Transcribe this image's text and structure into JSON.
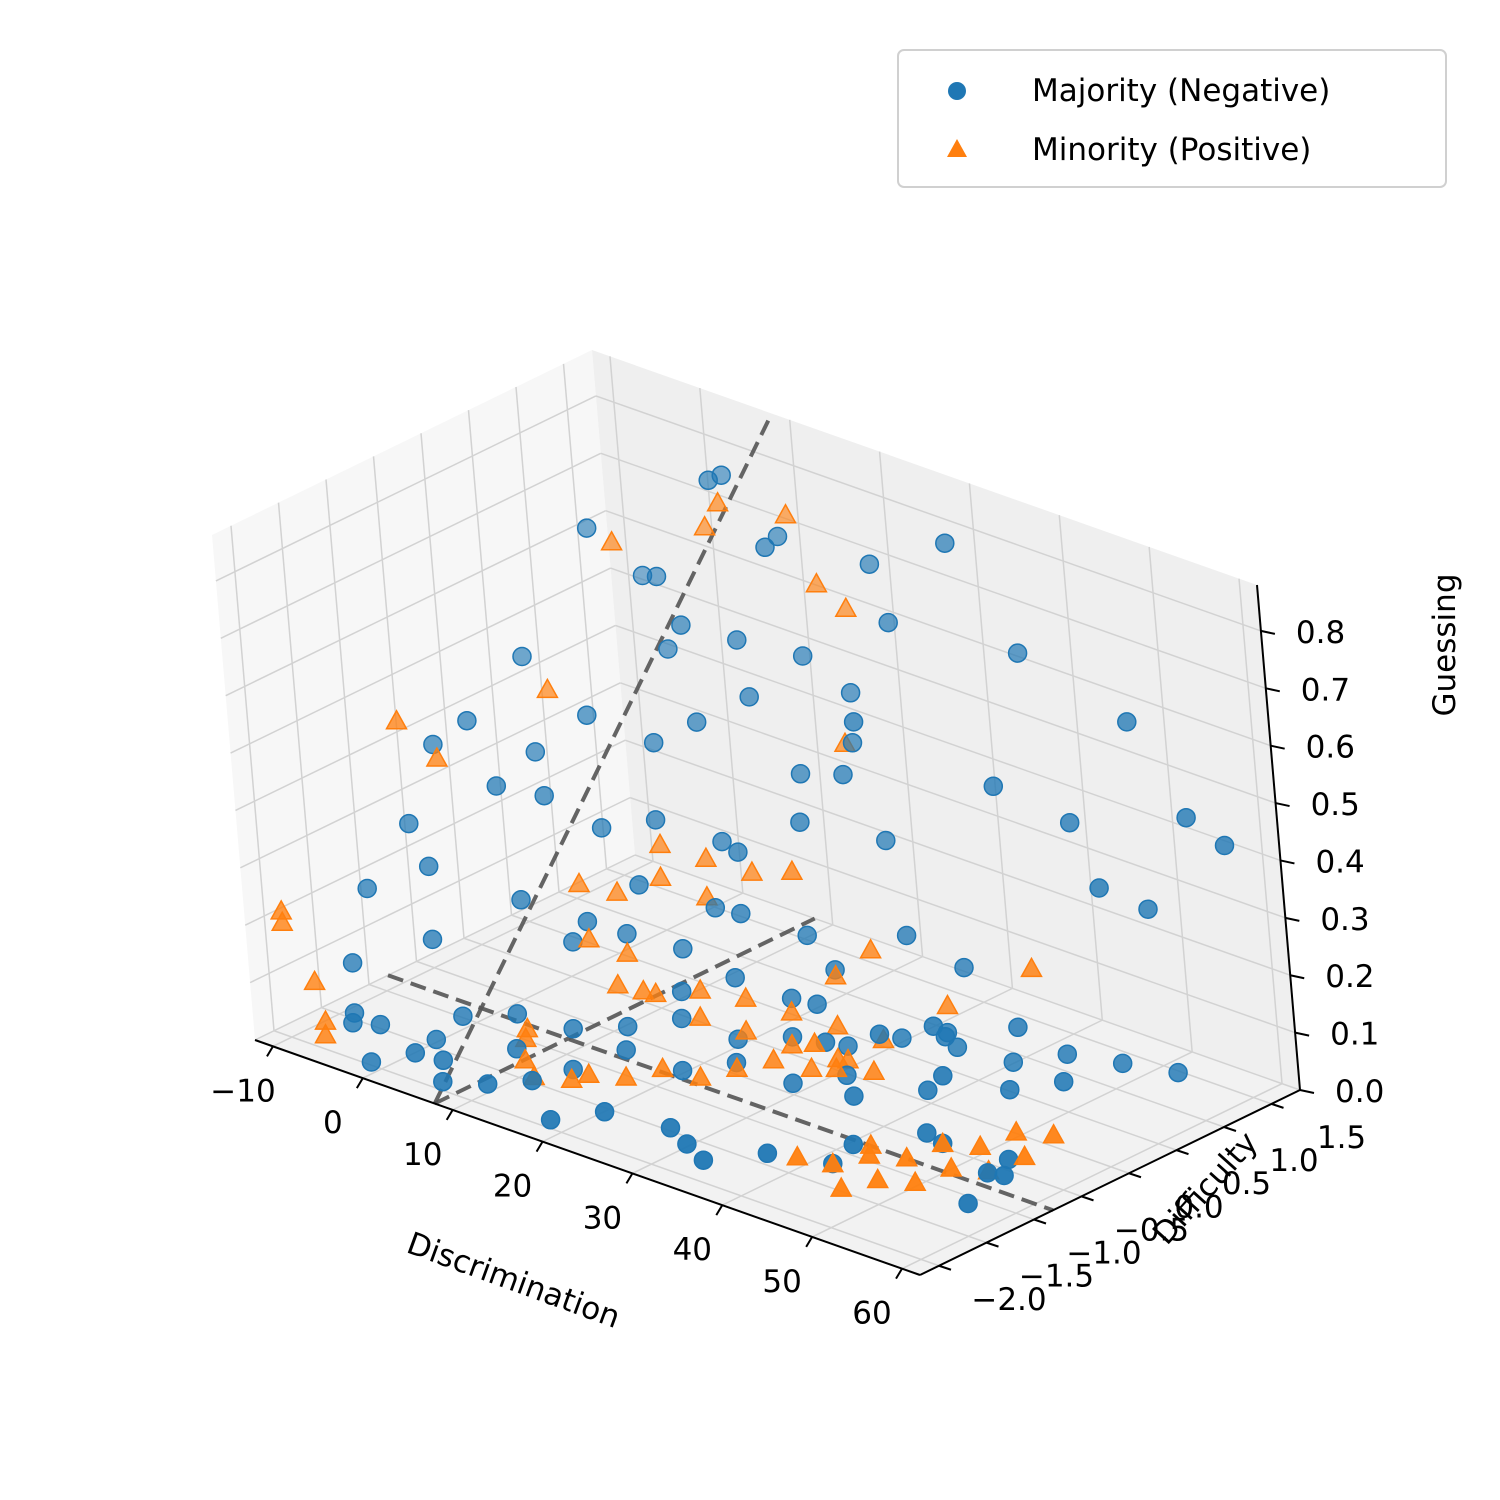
{
  "chart_data": {
    "type": "scatter",
    "projection": "3d",
    "x_axis": {
      "label": "Discrimination",
      "ticks": [
        "−10",
        "0",
        "10",
        "20",
        "30",
        "40",
        "50",
        "60"
      ]
    },
    "y_axis": {
      "label": "Difficulty",
      "ticks": [
        "−2.0",
        "−1.5",
        "−1.0",
        "−0.5",
        "0.0",
        "0.5",
        "1.0",
        "1.5"
      ]
    },
    "z_axis": {
      "label": "Guessing",
      "ticks": [
        "0.0",
        "0.1",
        "0.2",
        "0.3",
        "0.4",
        "0.5",
        "0.6",
        "0.7",
        "0.8"
      ]
    },
    "xlim": [
      -12,
      62
    ],
    "ylim": [
      -2.2,
      1.8
    ],
    "zlim": [
      0,
      0.88
    ],
    "legend": {
      "position": "top-right",
      "entries": [
        {
          "label": "Majority (Negative)",
          "marker": "circle",
          "color": "#1f77b4"
        },
        {
          "label": "Minority (Positive)",
          "marker": "triangle",
          "color": "#ff7f0e"
        }
      ]
    },
    "dashed_lines": [
      {
        "name": "discrimination-boundary",
        "from": [
          -12,
          -0.8,
          0.0
        ],
        "to": [
          62,
          -0.8,
          0.0
        ]
      },
      {
        "name": "difficulty-boundary",
        "from": [
          8,
          -2.2,
          0.0
        ],
        "to": [
          8,
          1.8,
          0.0
        ]
      },
      {
        "name": "guessing-boundary",
        "from": [
          8,
          -2.2,
          0.0
        ],
        "to": [
          8,
          1.8,
          0.88
        ]
      }
    ],
    "series": [
      {
        "name": "Majority (Negative)",
        "color": "#1f77b4",
        "marker": "circle",
        "points": [
          [
            -5,
            1.5,
            0.55
          ],
          [
            -3,
            0.8,
            0.7
          ],
          [
            0,
            1.2,
            0.6
          ],
          [
            5,
            1.5,
            0.78
          ],
          [
            8,
            1.1,
            0.82
          ],
          [
            12,
            1.4,
            0.72
          ],
          [
            15,
            1.0,
            0.75
          ],
          [
            20,
            1.6,
            0.7
          ],
          [
            25,
            1.3,
            0.65
          ],
          [
            30,
            1.5,
            0.8
          ],
          [
            35,
            1.7,
            0.62
          ],
          [
            48,
            1.6,
            0.58
          ],
          [
            55,
            1.5,
            0.46
          ],
          [
            58,
            1.6,
            0.42
          ],
          [
            45,
            1.2,
            0.42
          ],
          [
            50,
            1.0,
            0.35
          ],
          [
            52,
            1.3,
            0.3
          ],
          [
            40,
            0.9,
            0.48
          ],
          [
            28,
            0.6,
            0.55
          ],
          [
            22,
            0.5,
            0.35
          ],
          [
            18,
            0.2,
            0.3
          ],
          [
            14,
            0.4,
            0.28
          ],
          [
            10,
            0.1,
            0.32
          ],
          [
            6,
            -0.1,
            0.3
          ],
          [
            2,
            -0.3,
            0.35
          ],
          [
            -6,
            0.3,
            0.5
          ],
          [
            -8,
            -0.5,
            0.4
          ],
          [
            -4,
            -1.0,
            0.25
          ],
          [
            -8,
            -1.5,
            0.1
          ],
          [
            -2,
            -1.2,
            0.15
          ],
          [
            4,
            -0.8,
            0.22
          ],
          [
            8,
            -0.5,
            0.18
          ],
          [
            12,
            -0.3,
            0.25
          ],
          [
            16,
            0.1,
            0.2
          ],
          [
            20,
            0.0,
            0.22
          ],
          [
            24,
            0.3,
            0.18
          ],
          [
            28,
            0.2,
            0.15
          ],
          [
            32,
            0.6,
            0.2
          ],
          [
            36,
            0.8,
            0.15
          ],
          [
            38,
            0.4,
            0.08
          ],
          [
            40,
            0.2,
            0.1
          ],
          [
            42,
            -0.2,
            0.05
          ],
          [
            45,
            0.5,
            0.12
          ],
          [
            48,
            0.1,
            0.06
          ],
          [
            52,
            0.3,
            0.08
          ],
          [
            -2,
            -1.8,
            0.05
          ],
          [
            2,
            -1.6,
            0.03
          ],
          [
            6,
            -1.9,
            0.04
          ],
          [
            10,
            -1.5,
            0.05
          ],
          [
            14,
            -1.3,
            0.02
          ],
          [
            18,
            -1.1,
            0.06
          ],
          [
            22,
            -0.9,
            0.03
          ],
          [
            26,
            -0.7,
            0.05
          ],
          [
            30,
            -0.5,
            0.02
          ],
          [
            34,
            -0.3,
            0.04
          ],
          [
            38,
            -0.6,
            0.05
          ],
          [
            42,
            -1.0,
            0.02
          ],
          [
            46,
            -0.6,
            0.03
          ],
          [
            50,
            -0.8,
            0.05
          ],
          [
            54,
            -0.5,
            0.02
          ],
          [
            56,
            -0.9,
            0.04
          ],
          [
            58,
            -1.3,
            0.03
          ],
          [
            59,
            -1.0,
            0.06
          ],
          [
            44,
            -1.4,
            0.03
          ],
          [
            40,
            -1.7,
            0.05
          ],
          [
            36,
            -2.0,
            0.04
          ],
          [
            32,
            -1.8,
            0.03
          ],
          [
            28,
            -1.6,
            0.02
          ],
          [
            24,
            -1.9,
            0.05
          ],
          [
            20,
            -2.1,
            0.03
          ],
          [
            16,
            -1.9,
            0.06
          ],
          [
            12,
            -2.0,
            0.04
          ],
          [
            8,
            -2.1,
            0.03
          ],
          [
            4,
            -2.0,
            0.05
          ],
          [
            0,
            -2.1,
            0.02
          ],
          [
            -4,
            -1.9,
            0.05
          ],
          [
            -6,
            -1.7,
            0.04
          ],
          [
            3,
            -1.4,
            0.06
          ],
          [
            7,
            -1.2,
            0.07
          ],
          [
            11,
            -1.0,
            0.05
          ],
          [
            15,
            -0.8,
            0.06
          ],
          [
            19,
            -0.6,
            0.08
          ],
          [
            23,
            -0.4,
            0.05
          ],
          [
            27,
            -0.2,
            0.06
          ],
          [
            31,
            0.0,
            0.05
          ],
          [
            35,
            0.2,
            0.07
          ],
          [
            39,
            0.4,
            0.06
          ],
          [
            43,
            0.6,
            0.04
          ],
          [
            47,
            0.8,
            0.06
          ],
          [
            51,
            1.0,
            0.05
          ],
          [
            55,
            1.2,
            0.04
          ],
          [
            10,
            0.6,
            0.45
          ],
          [
            14,
            0.8,
            0.5
          ],
          [
            18,
            0.9,
            0.38
          ],
          [
            22,
            1.1,
            0.44
          ],
          [
            26,
            1.0,
            0.3
          ],
          [
            6,
            0.5,
            0.4
          ],
          [
            2,
            0.2,
            0.45
          ],
          [
            -2,
            0.0,
            0.38
          ],
          [
            4,
            0.9,
            0.52
          ],
          [
            8,
            0.7,
            0.6
          ],
          [
            12,
            0.9,
            0.58
          ],
          [
            16,
            1.2,
            0.55
          ],
          [
            20,
            1.3,
            0.5
          ],
          [
            24,
            0.8,
            0.42
          ],
          [
            -7,
            -0.9,
            0.3
          ],
          [
            -9,
            -1.2,
            0.2
          ],
          [
            -5,
            -0.4,
            0.45
          ],
          [
            0,
            -0.6,
            0.38
          ],
          [
            5,
            -0.4,
            0.12
          ],
          [
            9,
            -0.2,
            0.14
          ],
          [
            13,
            0.0,
            0.12
          ],
          [
            17,
            -0.4,
            0.1
          ],
          [
            21,
            -0.2,
            0.13
          ],
          [
            25,
            0.0,
            0.1
          ],
          [
            29,
            -0.1,
            0.12
          ],
          [
            33,
            -0.4,
            0.1
          ],
          [
            37,
            -0.2,
            0.12
          ],
          [
            41,
            0.0,
            0.14
          ],
          [
            45,
            -0.3,
            0.1
          ]
        ]
      },
      {
        "name": "Minority (Positive)",
        "color": "#ff7f0e",
        "marker": "triangle",
        "points": [
          [
            -10,
            -2.0,
            0.22
          ],
          [
            -10,
            -2.0,
            0.2
          ],
          [
            -8,
            -1.9,
            0.1
          ],
          [
            -6,
            -2.0,
            0.05
          ],
          [
            -5,
            -2.1,
            0.04
          ],
          [
            -4,
            -1.2,
            0.52
          ],
          [
            -2,
            -1.0,
            0.45
          ],
          [
            0,
            0.0,
            0.5
          ],
          [
            2,
            0.6,
            0.72
          ],
          [
            6,
            1.2,
            0.72
          ],
          [
            10,
            1.0,
            0.8
          ],
          [
            12,
            1.5,
            0.75
          ],
          [
            16,
            1.4,
            0.66
          ],
          [
            18,
            1.5,
            0.62
          ],
          [
            20,
            1.2,
            0.42
          ],
          [
            46,
            0.6,
            0.22
          ],
          [
            24,
            0.2,
            0.3
          ],
          [
            8,
            0.3,
            0.25
          ],
          [
            10,
            0.1,
            0.22
          ],
          [
            12,
            0.4,
            0.24
          ],
          [
            14,
            0.2,
            0.2
          ],
          [
            16,
            0.5,
            0.23
          ],
          [
            6,
            0.0,
            0.18
          ],
          [
            4,
            -0.2,
            0.2
          ],
          [
            8,
            -0.5,
            0.15
          ],
          [
            10,
            -0.3,
            0.12
          ],
          [
            12,
            -0.6,
            0.1
          ],
          [
            14,
            -0.4,
            0.08
          ],
          [
            16,
            -0.7,
            0.12
          ],
          [
            18,
            -0.3,
            0.1
          ],
          [
            20,
            -0.5,
            0.08
          ],
          [
            22,
            -0.2,
            0.1
          ],
          [
            24,
            -0.4,
            0.07
          ],
          [
            26,
            -0.1,
            0.09
          ],
          [
            28,
            -0.3,
            0.06
          ],
          [
            30,
            0.0,
            0.08
          ],
          [
            32,
            -0.2,
            0.05
          ],
          [
            34,
            0.1,
            0.07
          ],
          [
            18,
            -1.5,
            0.05
          ],
          [
            20,
            -1.3,
            0.04
          ],
          [
            22,
            -1.1,
            0.05
          ],
          [
            24,
            -0.9,
            0.03
          ],
          [
            26,
            -0.7,
            0.04
          ],
          [
            28,
            -0.5,
            0.05
          ],
          [
            30,
            -0.3,
            0.03
          ],
          [
            32,
            -0.1,
            0.04
          ],
          [
            34,
            -0.4,
            0.06
          ],
          [
            36,
            -0.2,
            0.05
          ],
          [
            14,
            -1.7,
            0.04
          ],
          [
            16,
            -1.5,
            0.03
          ],
          [
            12,
            -1.6,
            0.05
          ],
          [
            10,
            -1.4,
            0.06
          ],
          [
            8,
            -1.2,
            0.05
          ],
          [
            44,
            -1.4,
            0.03
          ],
          [
            46,
            -1.2,
            0.04
          ],
          [
            48,
            -1.0,
            0.03
          ],
          [
            50,
            -0.8,
            0.05
          ],
          [
            52,
            -0.6,
            0.04
          ],
          [
            54,
            -0.4,
            0.06
          ],
          [
            56,
            -0.2,
            0.05
          ],
          [
            47,
            -1.6,
            0.02
          ],
          [
            49,
            -1.4,
            0.03
          ],
          [
            51,
            -1.2,
            0.02
          ],
          [
            53,
            -1.0,
            0.04
          ],
          [
            55,
            -0.8,
            0.03
          ],
          [
            57,
            -0.6,
            0.05
          ],
          [
            40,
            -1.4,
            0.02
          ],
          [
            44,
            -1.0,
            0.03
          ],
          [
            30,
            0.4,
            0.18
          ],
          [
            28,
            0.2,
            0.14
          ],
          [
            36,
            0.6,
            0.1
          ],
          [
            34,
            -0.6,
            0.12
          ]
        ]
      }
    ]
  }
}
